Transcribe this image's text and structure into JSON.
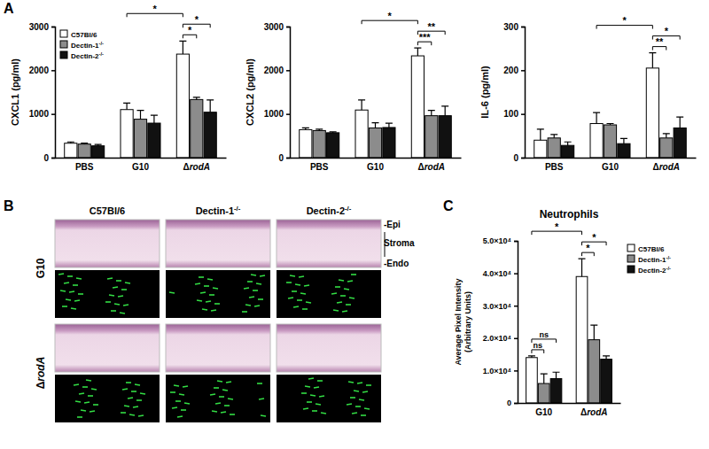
{
  "panel_labels": [
    "A",
    "B",
    "C"
  ],
  "chart_data": [
    {
      "type": "bar",
      "y_label": "CXCL1 (pg/ml)",
      "categories": [
        "PBS",
        "G10",
        "ΔrodA"
      ],
      "series": [
        {
          "name": "C57Bl/6",
          "color": "#ffffff",
          "values": [
            330,
            1100,
            2370
          ],
          "errors": [
            30,
            150,
            300
          ]
        },
        {
          "name": "Dectin-1-/-",
          "color": "#8c8c8c",
          "values": [
            310,
            880,
            1330
          ],
          "errors": [
            20,
            200,
            50
          ]
        },
        {
          "name": "Dectin-2-/-",
          "color": "#111111",
          "values": [
            270,
            790,
            1040
          ],
          "errors": [
            30,
            180,
            280
          ]
        }
      ],
      "ylim": [
        0,
        3000
      ],
      "yticks": [
        0,
        1000,
        2000,
        3000
      ],
      "legend": "top-left",
      "significance": [
        {
          "label": "*",
          "from": {
            "category": 2,
            "series": 0
          },
          "to": {
            "category": 2,
            "series": 1
          }
        },
        {
          "label": "*",
          "from": {
            "category": 2,
            "series": 0
          },
          "to": {
            "category": 2,
            "series": 2
          }
        },
        {
          "label": "*",
          "from": {
            "category": 1,
            "series": 0
          },
          "to": {
            "category": 2,
            "series": 0
          }
        }
      ]
    },
    {
      "type": "bar",
      "y_label": "CXCL2 (pg/ml)",
      "categories": [
        "PBS",
        "G10",
        "ΔrodA"
      ],
      "series": [
        {
          "color": "#ffffff",
          "values": [
            640,
            1090,
            2330
          ],
          "errors": [
            40,
            230,
            180
          ]
        },
        {
          "color": "#8c8c8c",
          "values": [
            620,
            680,
            960
          ],
          "errors": [
            30,
            120,
            120
          ]
        },
        {
          "color": "#111111",
          "values": [
            570,
            690,
            960
          ],
          "errors": [
            20,
            100,
            220
          ]
        }
      ],
      "ylim": [
        0,
        3000
      ],
      "yticks": [
        0,
        1000,
        2000,
        3000
      ],
      "significance": [
        {
          "label": "***",
          "from": {
            "category": 2,
            "series": 0
          },
          "to": {
            "category": 2,
            "series": 1
          }
        },
        {
          "label": "**",
          "from": {
            "category": 2,
            "series": 0
          },
          "to": {
            "category": 2,
            "series": 2
          }
        },
        {
          "label": "*",
          "from": {
            "category": 1,
            "series": 0
          },
          "to": {
            "category": 2,
            "series": 0
          }
        }
      ]
    },
    {
      "type": "bar",
      "y_label": "IL-6 (pg/ml)",
      "categories": [
        "PBS",
        "G10",
        "ΔrodA"
      ],
      "series": [
        {
          "color": "#ffffff",
          "values": [
            40,
            78,
            205
          ],
          "errors": [
            25,
            25,
            35
          ]
        },
        {
          "color": "#8c8c8c",
          "values": [
            45,
            75,
            45
          ],
          "errors": [
            8,
            3,
            10
          ]
        },
        {
          "color": "#111111",
          "values": [
            28,
            32,
            68
          ],
          "errors": [
            8,
            12,
            25
          ]
        }
      ],
      "ylim": [
        0,
        300
      ],
      "yticks": [
        0,
        100,
        200,
        300
      ],
      "significance": [
        {
          "label": "**",
          "from": {
            "category": 2,
            "series": 0
          },
          "to": {
            "category": 2,
            "series": 1
          }
        },
        {
          "label": "*",
          "from": {
            "category": 2,
            "series": 0
          },
          "to": {
            "category": 2,
            "series": 2
          }
        },
        {
          "label": "*",
          "from": {
            "category": 1,
            "series": 0
          },
          "to": {
            "category": 2,
            "series": 0
          }
        }
      ]
    },
    {
      "type": "bar",
      "title": "Neutrophils",
      "y_label": [
        "Average Pixel Intensity",
        "(Arbitrary Units)"
      ],
      "categories": [
        "G10",
        "ΔrodA"
      ],
      "series": [
        {
          "name": "C57Bl/6",
          "color": "#ffffff",
          "values": [
            14000,
            39000
          ],
          "errors": [
            500,
            5500
          ]
        },
        {
          "name": "Dectin-1-/-",
          "color": "#8c8c8c",
          "values": [
            6000,
            19500
          ],
          "errors": [
            3000,
            4500
          ]
        },
        {
          "name": "Dectin-2-/-",
          "color": "#111111",
          "values": [
            7500,
            13500
          ],
          "errors": [
            2000,
            1000
          ]
        }
      ],
      "ylim": [
        0,
        50000
      ],
      "yticks": [
        0,
        {
          "value": 10000,
          "label": "1.0×10⁴"
        },
        {
          "value": 20000,
          "label": "2.0×10⁴"
        },
        {
          "value": 30000,
          "label": "3.0×10⁴"
        },
        {
          "value": 40000,
          "label": "4.0×10⁴"
        },
        {
          "value": 50000,
          "label": "5.0×10⁴"
        }
      ],
      "legend": "right",
      "significance": [
        {
          "label": "ns",
          "from": {
            "category": 0,
            "series": 0
          },
          "to": {
            "category": 0,
            "series": 1
          }
        },
        {
          "label": "ns",
          "from": {
            "category": 0,
            "series": 0
          },
          "to": {
            "category": 0,
            "series": 2
          }
        },
        {
          "label": "*",
          "from": {
            "category": 1,
            "series": 0
          },
          "to": {
            "category": 1,
            "series": 1
          }
        },
        {
          "label": "*",
          "from": {
            "category": 1,
            "series": 0
          },
          "to": {
            "category": 1,
            "series": 2
          }
        },
        {
          "label": "*",
          "from": {
            "category": 0,
            "series": 0
          },
          "to": {
            "category": 1,
            "series": 0
          }
        }
      ]
    }
  ],
  "micrographs": {
    "columns": [
      "C57Bl/6",
      "Dectin-1-/-",
      "Dectin-2-/-"
    ],
    "rows": [
      "G10",
      "ΔrodA"
    ],
    "layers": [
      "-Epi",
      "Stroma",
      "-Endo"
    ]
  }
}
